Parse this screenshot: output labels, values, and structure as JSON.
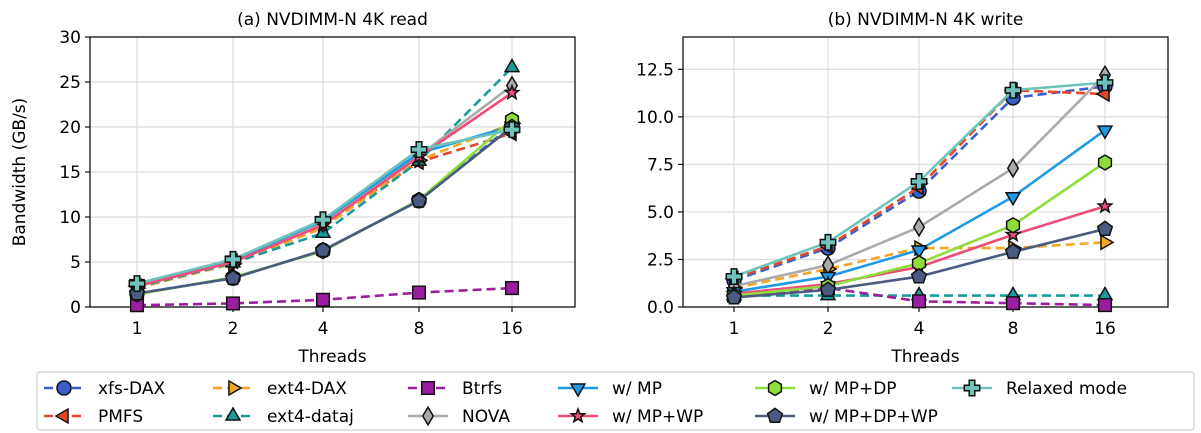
{
  "chart_data": [
    {
      "type": "line",
      "title": "(a) NVDIMM-N 4K read",
      "xlabel": "Threads",
      "ylabel": "Bandwidth (GB/s)",
      "x": [
        "1",
        "2",
        "4",
        "8",
        "16"
      ],
      "ylim": [
        0,
        30
      ],
      "yticks": [
        "0",
        "5",
        "10",
        "15",
        "20",
        "25",
        "30"
      ],
      "grid": true,
      "series": [
        {
          "name": "xfs-DAX",
          "values": [
            1.5,
            3.2,
            6.3,
            11.8,
            20.2
          ]
        },
        {
          "name": "PMFS",
          "values": [
            2.3,
            5.1,
            9.2,
            16.1,
            19.3
          ]
        },
        {
          "name": "ext4-DAX",
          "values": [
            2.1,
            4.8,
            8.8,
            16.3,
            20.4
          ]
        },
        {
          "name": "ext4-dataj",
          "values": [
            2.2,
            4.9,
            8.2,
            16.2,
            26.6
          ]
        },
        {
          "name": "Btrfs",
          "values": [
            0.2,
            0.4,
            0.8,
            1.6,
            2.1
          ]
        },
        {
          "name": "NOVA",
          "values": [
            2.4,
            5.0,
            9.3,
            16.8,
            24.6
          ]
        },
        {
          "name": "w/ MP",
          "values": [
            2.6,
            5.2,
            9.6,
            17.1,
            20.1
          ]
        },
        {
          "name": "w/ MP+WP",
          "values": [
            2.3,
            5.0,
            9.1,
            16.7,
            23.8
          ]
        },
        {
          "name": "w/ MP+DP",
          "values": [
            1.4,
            3.3,
            6.2,
            11.9,
            20.8
          ]
        },
        {
          "name": "w/ MP+DP+WP",
          "values": [
            1.5,
            3.2,
            6.3,
            11.8,
            20.0
          ]
        },
        {
          "name": "Relaxed mode",
          "values": [
            2.6,
            5.3,
            9.7,
            17.5,
            19.7
          ]
        }
      ]
    },
    {
      "type": "line",
      "title": "(b) NVDIMM-N 4K write",
      "xlabel": "Threads",
      "ylabel": "",
      "x": [
        "1",
        "2",
        "4",
        "8",
        "16"
      ],
      "ylim": [
        0,
        14.2
      ],
      "yticks": [
        "0.0",
        "2.5",
        "5.0",
        "7.5",
        "10.0",
        "12.5"
      ],
      "grid": true,
      "series": [
        {
          "name": "xfs-DAX",
          "values": [
            1.4,
            3.1,
            6.1,
            11.0,
            11.6
          ]
        },
        {
          "name": "PMFS",
          "values": [
            1.5,
            3.2,
            6.3,
            11.4,
            11.2
          ]
        },
        {
          "name": "ext4-DAX",
          "values": [
            1.0,
            2.0,
            3.1,
            3.1,
            3.4
          ]
        },
        {
          "name": "ext4-dataj",
          "values": [
            0.6,
            0.6,
            0.6,
            0.6,
            0.6
          ]
        },
        {
          "name": "Btrfs",
          "values": [
            0.6,
            1.0,
            0.3,
            0.2,
            0.1
          ]
        },
        {
          "name": "NOVA",
          "values": [
            1.1,
            2.2,
            4.2,
            7.3,
            12.2
          ]
        },
        {
          "name": "w/ MP",
          "values": [
            0.8,
            1.6,
            3.0,
            5.8,
            9.3
          ]
        },
        {
          "name": "w/ MP+WP",
          "values": [
            0.7,
            1.2,
            2.1,
            3.8,
            5.3
          ]
        },
        {
          "name": "w/ MP+DP",
          "values": [
            0.6,
            1.1,
            2.3,
            4.3,
            7.6
          ]
        },
        {
          "name": "w/ MP+DP+WP",
          "values": [
            0.5,
            0.9,
            1.6,
            2.9,
            4.1
          ]
        },
        {
          "name": "Relaxed mode",
          "values": [
            1.6,
            3.4,
            6.6,
            11.4,
            11.8
          ]
        }
      ]
    }
  ],
  "legend": {
    "placement": "bottom",
    "entries": [
      {
        "label": "xfs-DAX",
        "color": "#3a5fcd",
        "line": "dashed",
        "marker": "circle"
      },
      {
        "label": "PMFS",
        "color": "#e2492c",
        "line": "dashed",
        "marker": "triangle-left"
      },
      {
        "label": "ext4-DAX",
        "color": "#f5a623",
        "line": "dashed",
        "marker": "triangle-right"
      },
      {
        "label": "ext4-dataj",
        "color": "#1a9b9b",
        "line": "dashed",
        "marker": "triangle-up"
      },
      {
        "label": "Btrfs",
        "color": "#9b1ea0",
        "line": "dashed",
        "marker": "square"
      },
      {
        "label": "NOVA",
        "color": "#aaaaaa",
        "line": "solid",
        "marker": "diamond"
      },
      {
        "label": "w/ MP",
        "color": "#1f9ae8",
        "line": "solid",
        "marker": "triangle-down"
      },
      {
        "label": "w/ MP+WP",
        "color": "#ef4c77",
        "line": "solid",
        "marker": "star"
      },
      {
        "label": "w/ MP+DP",
        "color": "#8fdc3a",
        "line": "solid",
        "marker": "hexagon"
      },
      {
        "label": "w/ MP+DP+WP",
        "color": "#4a5a80",
        "line": "solid",
        "marker": "pentagon"
      },
      {
        "label": "Relaxed mode",
        "color": "#6fc3bb",
        "line": "solid",
        "marker": "plus"
      }
    ]
  }
}
